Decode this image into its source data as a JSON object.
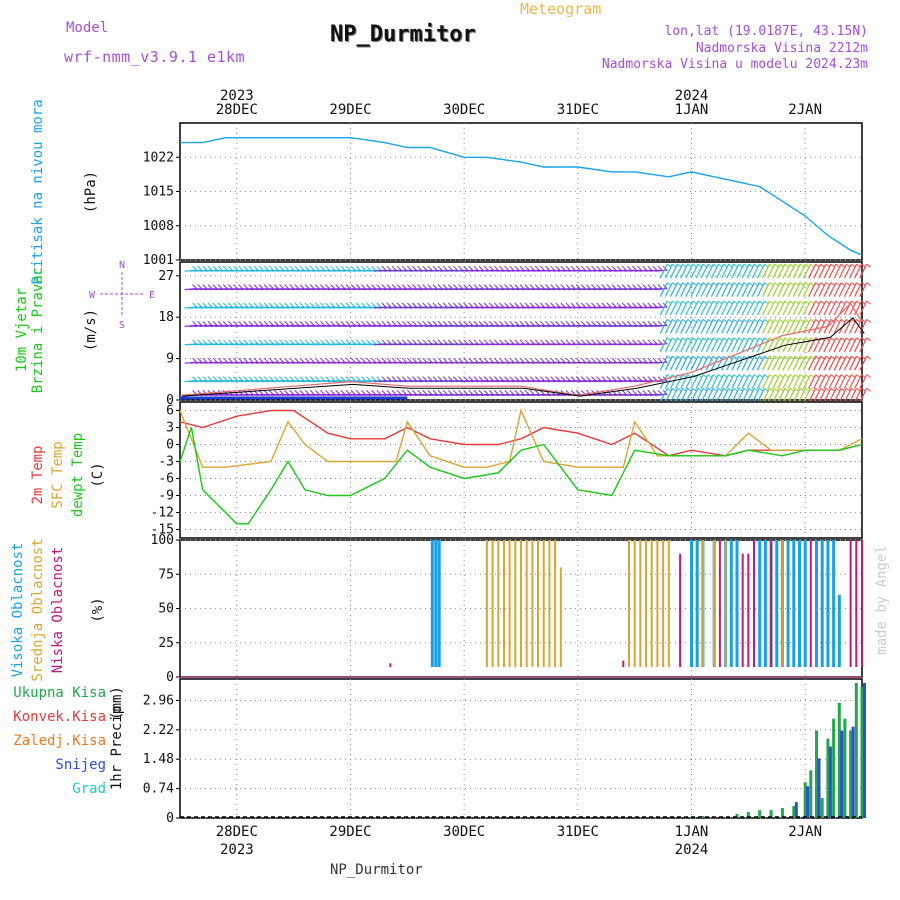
{
  "header": {
    "model_label": "Model",
    "model_name": "wrf-nmm_v3.9.1 e1km",
    "title": "NP_Durmitor",
    "meteogram_label": "Meteogram",
    "lonlat": "lon,lat (19.0187E, 43.15N)",
    "altitude": "Nadmorska Visina 2212m",
    "model_altitude": "Nadmorska Visina u modelu 2024.23m",
    "credit": "made by Angel",
    "footer_station": "NP_Durmitor"
  },
  "colors": {
    "pressure": "#1aa3e6",
    "temp2m": "#e83a3a",
    "sfc": "#d9a636",
    "dewpt": "#19c819",
    "high_cloud": "#19a0e6",
    "mid_cloud": "#d9a636",
    "low_cloud": "#c2177f",
    "total_precip": "#23a74a",
    "convective": "#e83a3a",
    "freezing": "#f07a23",
    "snow": "#2c4fd6",
    "hail": "#22c7c7",
    "purple_text": "#a64ed6",
    "orange_text": "#f0b84a"
  },
  "chart_data": [
    {
      "id": "pressure",
      "type": "line",
      "title": "",
      "ylabel": "Pritisak na nivou mora",
      "unit": "(hPa)",
      "ylim": [
        1001,
        1029
      ],
      "yticks": [
        1001,
        1008,
        1015,
        1022
      ],
      "grid": true,
      "x_unit": "days since 2023-12-28 00 UTC",
      "x": [
        -0.5,
        -0.3,
        -0.1,
        0.1,
        0.3,
        0.5,
        0.8,
        1.0,
        1.3,
        1.5,
        1.7,
        2.0,
        2.2,
        2.5,
        2.7,
        3.0,
        3.3,
        3.5,
        3.8,
        4.0,
        4.2,
        4.4,
        4.6,
        4.8,
        5.0,
        5.2,
        5.4,
        5.5
      ],
      "values": [
        1025,
        1025,
        1026,
        1026,
        1026,
        1026,
        1026,
        1026,
        1025,
        1024,
        1024,
        1022,
        1022,
        1021,
        1020,
        1020,
        1019,
        1019,
        1018,
        1019,
        1018,
        1017,
        1016,
        1013,
        1010,
        1006,
        1003,
        1002
      ],
      "series_name": "Pritisak na nivou mora"
    },
    {
      "id": "wind",
      "type": "barbs",
      "title": "",
      "ylabel": "10m Vjetar Brzina i Pravac",
      "unit": "(m/s)",
      "ylim": [
        0,
        30
      ],
      "yticks": [
        0,
        9,
        18,
        27
      ],
      "grid": true,
      "compass": [
        "N",
        "W",
        "E",
        "S"
      ],
      "barb_levels": [
        1,
        4,
        8,
        12,
        16,
        20,
        24,
        28
      ],
      "series": [
        {
          "name": "speed",
          "x": [
            -0.5,
            0,
            0.5,
            1.0,
            1.5,
            2.0,
            2.5,
            3.0,
            3.5,
            4.0,
            4.3,
            4.6,
            4.8,
            5.0,
            5.2,
            5.4,
            5.5
          ],
          "values": [
            1,
            2,
            3,
            4,
            3,
            3,
            3,
            1,
            3,
            6,
            9,
            12,
            14,
            15,
            16,
            21,
            17
          ]
        }
      ]
    },
    {
      "id": "temperature",
      "type": "line",
      "title": "",
      "unit": "(C)",
      "ylim": [
        -16.5,
        7.5
      ],
      "yticks": [
        -15,
        -12,
        -9,
        -6,
        -3,
        0,
        3,
        6
      ],
      "grid": true,
      "series": [
        {
          "name": "2m Temp",
          "color_key": "temp2m",
          "x": [
            -0.5,
            -0.3,
            0,
            0.3,
            0.5,
            0.8,
            1.0,
            1.3,
            1.5,
            1.7,
            2.0,
            2.3,
            2.5,
            2.7,
            3.0,
            3.3,
            3.5,
            3.8,
            4.0,
            4.3,
            4.5,
            4.8,
            5.0,
            5.3,
            5.5
          ],
          "values": [
            4,
            3,
            5,
            6,
            6,
            2,
            1,
            1,
            3,
            1,
            0,
            0,
            1,
            3,
            2,
            0,
            2,
            -2,
            -1,
            -2,
            -1,
            -1,
            -1,
            -1,
            0
          ]
        },
        {
          "name": "SFC Temp",
          "color_key": "sfc",
          "x": [
            -0.5,
            -0.3,
            -0.1,
            0.3,
            0.45,
            0.6,
            0.8,
            1.0,
            1.2,
            1.4,
            1.5,
            1.7,
            2.0,
            2.2,
            2.4,
            2.5,
            2.7,
            3.0,
            3.2,
            3.4,
            3.5,
            3.7,
            4.0,
            4.3,
            4.5,
            4.7,
            5.0,
            5.3,
            5.5
          ],
          "values": [
            6,
            -4,
            -4,
            -3,
            4,
            0,
            -3,
            -3,
            -3,
            -3,
            4,
            -2,
            -4,
            -4,
            -3,
            6,
            -3,
            -4,
            -4,
            -4,
            4,
            -2,
            -2,
            -2,
            2,
            -1,
            -1,
            -1,
            1
          ]
        },
        {
          "name": "dewpt Temp",
          "color_key": "dewpt",
          "x": [
            -0.5,
            -0.4,
            -0.3,
            -0.1,
            0,
            0.1,
            0.3,
            0.45,
            0.6,
            0.8,
            1.0,
            1.3,
            1.5,
            1.7,
            2.0,
            2.3,
            2.5,
            2.7,
            3.0,
            3.3,
            3.5,
            3.8,
            4.0,
            4.3,
            4.5,
            4.8,
            5.0,
            5.3,
            5.5
          ],
          "values": [
            -3,
            3,
            -8,
            -12,
            -14,
            -14,
            -8,
            -3,
            -8,
            -9,
            -9,
            -6,
            -1,
            -4,
            -6,
            -5,
            -1,
            0,
            -8,
            -9,
            -1,
            -2,
            -2,
            -2,
            -1,
            -2,
            -1,
            -1,
            0
          ]
        }
      ]
    },
    {
      "id": "clouds",
      "type": "bar",
      "title": "",
      "unit": "(%)",
      "ylim": [
        0,
        100
      ],
      "yticks": [
        0,
        25,
        50,
        75,
        100
      ],
      "grid": true,
      "series": [
        {
          "name": "Visoka Oblacnost",
          "color_key": "high_cloud",
          "x": [
            1.72,
            1.75,
            1.78,
            4.0,
            4.05,
            4.1,
            4.2,
            4.3,
            4.35,
            4.4,
            4.6,
            4.65,
            4.7,
            4.75,
            4.8,
            4.85,
            4.9,
            4.95,
            5.0,
            5.1,
            5.15,
            5.2,
            5.25,
            5.3
          ],
          "values": [
            100,
            100,
            100,
            100,
            100,
            100,
            100,
            100,
            100,
            100,
            100,
            100,
            100,
            100,
            100,
            100,
            100,
            100,
            100,
            100,
            100,
            100,
            100,
            60
          ]
        },
        {
          "name": "Srednja Oblacnost",
          "color_key": "mid_cloud",
          "x": [
            2.2,
            2.25,
            2.3,
            2.35,
            2.4,
            2.45,
            2.5,
            2.55,
            2.6,
            2.65,
            2.7,
            2.75,
            2.8,
            2.85,
            3.45,
            3.5,
            3.55,
            3.6,
            3.65,
            3.7,
            3.75,
            3.8,
            4.1,
            4.2,
            4.3,
            4.8
          ],
          "values": [
            100,
            100,
            100,
            100,
            100,
            100,
            100,
            100,
            100,
            100,
            100,
            100,
            100,
            80,
            100,
            100,
            100,
            100,
            100,
            100,
            100,
            100,
            100,
            100,
            100,
            100
          ]
        },
        {
          "name": "Niska Oblacnost",
          "color_key": "low_cloud",
          "x": [
            1.35,
            3.4,
            3.9,
            4.25,
            4.45,
            4.5,
            4.55,
            4.7,
            5.05,
            5.4,
            5.45,
            5.5
          ],
          "values": [
            10,
            12,
            90,
            100,
            90,
            90,
            100,
            100,
            100,
            100,
            100,
            100
          ]
        }
      ]
    },
    {
      "id": "precip",
      "type": "bar",
      "title": "",
      "ylabel": "1hr Precip",
      "unit": "(mm)",
      "ylim": [
        0,
        3.5
      ],
      "yticks": [
        0,
        0.74,
        1.48,
        2.22,
        2.96
      ],
      "grid": true,
      "series": [
        {
          "name": "Ukupna Kisa",
          "color_key": "total_precip",
          "x": [
            4.0,
            4.1,
            4.2,
            4.4,
            4.5,
            4.6,
            4.7,
            4.8,
            4.9,
            5.0,
            5.05,
            5.1,
            5.15,
            5.2,
            5.25,
            5.3,
            5.35,
            5.4,
            5.45,
            5.5
          ],
          "values": [
            0.02,
            0.05,
            0.03,
            0.1,
            0.15,
            0.2,
            0.2,
            0.25,
            0.3,
            0.9,
            1.2,
            2.2,
            0.5,
            2.0,
            2.5,
            2.9,
            2.5,
            2.2,
            3.4,
            3.3
          ]
        },
        {
          "name": "Snijeg",
          "color_key": "snow",
          "x": [
            4.9,
            5.0,
            5.1,
            5.2,
            5.3,
            5.4,
            5.5
          ],
          "values": [
            0.4,
            0.8,
            1.5,
            1.8,
            2.2,
            2.3,
            3.4
          ]
        }
      ],
      "legend": [
        "Ukupna Kisa",
        "Konvek.Kisa",
        "Zaledj.Kisa",
        "Snijeg",
        "Grad"
      ]
    }
  ],
  "time_axis": {
    "top_labels": [
      {
        "x": 0,
        "day": "28DEC",
        "year": "2023"
      },
      {
        "x": 1,
        "day": "29DEC",
        "year": ""
      },
      {
        "x": 2,
        "day": "30DEC",
        "year": ""
      },
      {
        "x": 3,
        "day": "31DEC",
        "year": ""
      },
      {
        "x": 4,
        "day": "1JAN",
        "year": "2024"
      },
      {
        "x": 5,
        "day": "2JAN",
        "year": ""
      }
    ]
  }
}
